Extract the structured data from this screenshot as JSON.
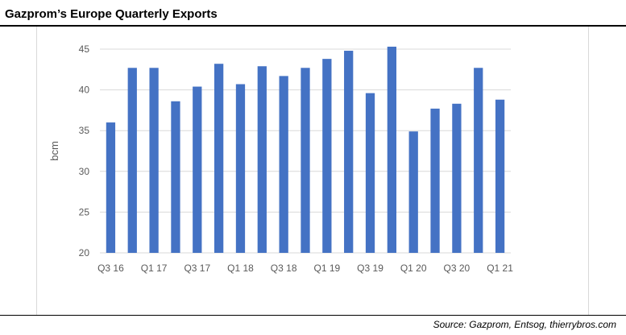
{
  "header": {
    "title": "Gazprom’s Europe Quarterly Exports"
  },
  "footer": {
    "source": "Source: Gazprom, Entsog, thierrybros.com"
  },
  "colors": {
    "bar": "#4472c4",
    "grid": "#d9d9d9",
    "axis_text": "#595959"
  },
  "chart_data": {
    "type": "bar",
    "title": "Gazprom’s Europe Quarterly Exports",
    "xlabel": "",
    "ylabel": "bcm",
    "ylim": [
      20,
      45
    ],
    "yticks": [
      20,
      25,
      30,
      35,
      40,
      45
    ],
    "grid": true,
    "categories": [
      "Q3 16",
      "Q4 16",
      "Q1 17",
      "Q2 17",
      "Q3 17",
      "Q4 17",
      "Q1 18",
      "Q2 18",
      "Q3 18",
      "Q4 18",
      "Q1 19",
      "Q2 19",
      "Q3 19",
      "Q4 19",
      "Q1 20",
      "Q2 20",
      "Q3 20",
      "Q4 20",
      "Q1 21"
    ],
    "visible_xtick_labels": [
      "Q3 16",
      "",
      "Q1 17",
      "",
      "Q3 17",
      "",
      "Q1 18",
      "",
      "Q3 18",
      "",
      "Q1 19",
      "",
      "Q3 19",
      "",
      "Q1 20",
      "",
      "Q3 20",
      "",
      "Q1 21"
    ],
    "values": [
      36.0,
      42.7,
      42.7,
      38.6,
      40.4,
      43.2,
      40.7,
      42.9,
      41.7,
      42.7,
      43.8,
      44.8,
      39.6,
      45.3,
      34.9,
      37.7,
      38.3,
      42.7,
      38.8
    ]
  }
}
